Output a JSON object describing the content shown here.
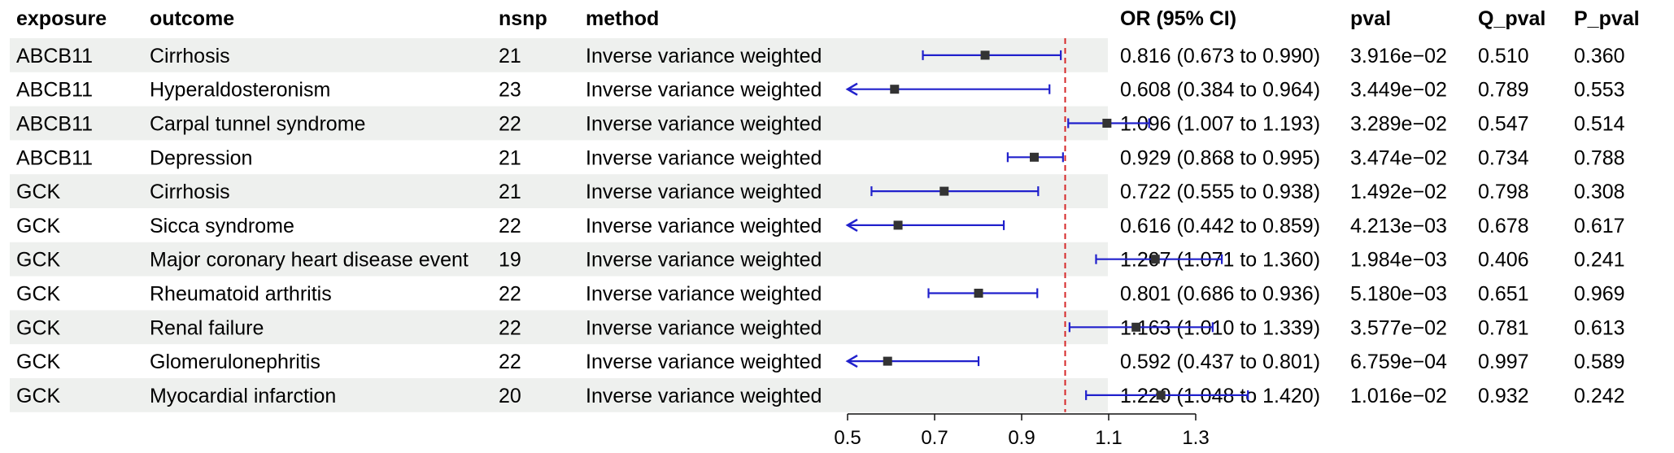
{
  "columns": {
    "exposure": "exposure",
    "outcome": "outcome",
    "nsnp": "nsnp",
    "method": "method",
    "or": "OR (95% CI)",
    "pval": "pval",
    "q_pval": "Q_pval",
    "p_pval": "P_pval"
  },
  "rows": [
    {
      "exposure": "ABCB11",
      "outcome": "Cirrhosis",
      "nsnp": "21",
      "method": "Inverse variance weighted",
      "or_ci": "0.816 (0.673 to 0.990)",
      "pval": "3.916e−02",
      "q_pval": "0.510",
      "p_pval": "0.360"
    },
    {
      "exposure": "ABCB11",
      "outcome": "Hyperaldosteronism",
      "nsnp": "23",
      "method": "Inverse variance weighted",
      "or_ci": "0.608 (0.384 to 0.964)",
      "pval": "3.449e−02",
      "q_pval": "0.789",
      "p_pval": "0.553"
    },
    {
      "exposure": "ABCB11",
      "outcome": "Carpal tunnel syndrome",
      "nsnp": "22",
      "method": "Inverse variance weighted",
      "or_ci": "1.096 (1.007 to 1.193)",
      "pval": "3.289e−02",
      "q_pval": "0.547",
      "p_pval": "0.514"
    },
    {
      "exposure": "ABCB11",
      "outcome": "Depression",
      "nsnp": "21",
      "method": "Inverse variance weighted",
      "or_ci": "0.929 (0.868 to 0.995)",
      "pval": "3.474e−02",
      "q_pval": "0.734",
      "p_pval": "0.788"
    },
    {
      "exposure": "GCK",
      "outcome": "Cirrhosis",
      "nsnp": "21",
      "method": "Inverse variance weighted",
      "or_ci": "0.722 (0.555 to 0.938)",
      "pval": "1.492e−02",
      "q_pval": "0.798",
      "p_pval": "0.308"
    },
    {
      "exposure": "GCK",
      "outcome": "Sicca syndrome",
      "nsnp": "22",
      "method": "Inverse variance weighted",
      "or_ci": "0.616 (0.442 to 0.859)",
      "pval": "4.213e−03",
      "q_pval": "0.678",
      "p_pval": "0.617"
    },
    {
      "exposure": "GCK",
      "outcome": "Major coronary heart disease event",
      "nsnp": "19",
      "method": "Inverse variance weighted",
      "or_ci": "1.207 (1.071 to 1.360)",
      "pval": "1.984e−03",
      "q_pval": "0.406",
      "p_pval": "0.241"
    },
    {
      "exposure": "GCK",
      "outcome": "Rheumatoid arthritis",
      "nsnp": "22",
      "method": "Inverse variance weighted",
      "or_ci": "0.801 (0.686 to 0.936)",
      "pval": "5.180e−03",
      "q_pval": "0.651",
      "p_pval": "0.969"
    },
    {
      "exposure": "GCK",
      "outcome": "Renal failure",
      "nsnp": "22",
      "method": "Inverse variance weighted",
      "or_ci": "1.163 (1.010 to 1.339)",
      "pval": "3.577e−02",
      "q_pval": "0.781",
      "p_pval": "0.613"
    },
    {
      "exposure": "GCK",
      "outcome": "Glomerulonephritis",
      "nsnp": "22",
      "method": "Inverse variance weighted",
      "or_ci": "0.592 (0.437 to 0.801)",
      "pval": "6.759e−04",
      "q_pval": "0.997",
      "p_pval": "0.589"
    },
    {
      "exposure": "GCK",
      "outcome": "Myocardial infarction",
      "nsnp": "20",
      "method": "Inverse variance weighted",
      "or_ci": "1.220 (1.048 to 1.420)",
      "pval": "1.016e−02",
      "q_pval": "0.932",
      "p_pval": "0.242"
    }
  ],
  "chart_data": {
    "type": "forest",
    "xlim": [
      0.5,
      1.6
    ],
    "xticks": [
      0.5,
      0.7,
      0.9,
      1.1,
      1.3
    ],
    "xtick_labels": [
      "0.5",
      "0.7",
      "0.9",
      "1.1",
      "1.3"
    ],
    "reference_line": 1.0,
    "reference_line_style": "dashed",
    "reference_line_color": "#d62728",
    "ci_color": "#2020cc",
    "point_color": "#333333",
    "row_stripe_color": "#eef0ee",
    "points": [
      {
        "label": "ABCB11 Cirrhosis",
        "or": 0.816,
        "lower": 0.673,
        "upper": 0.99
      },
      {
        "label": "ABCB11 Hyperaldosteronism",
        "or": 0.608,
        "lower": 0.384,
        "upper": 0.964
      },
      {
        "label": "ABCB11 Carpal tunnel syndrome",
        "or": 1.096,
        "lower": 1.007,
        "upper": 1.193
      },
      {
        "label": "ABCB11 Depression",
        "or": 0.929,
        "lower": 0.868,
        "upper": 0.995
      },
      {
        "label": "GCK Cirrhosis",
        "or": 0.722,
        "lower": 0.555,
        "upper": 0.938
      },
      {
        "label": "GCK Sicca syndrome",
        "or": 0.616,
        "lower": 0.442,
        "upper": 0.859
      },
      {
        "label": "GCK Major coronary heart disease event",
        "or": 1.207,
        "lower": 1.071,
        "upper": 1.36
      },
      {
        "label": "GCK Rheumatoid arthritis",
        "or": 0.801,
        "lower": 0.686,
        "upper": 0.936
      },
      {
        "label": "GCK Renal failure",
        "or": 1.163,
        "lower": 1.01,
        "upper": 1.339
      },
      {
        "label": "GCK Glomerulonephritis",
        "or": 0.592,
        "lower": 0.437,
        "upper": 0.801
      },
      {
        "label": "GCK Myocardial infarction",
        "or": 1.22,
        "lower": 1.048,
        "upper": 1.42
      }
    ]
  }
}
